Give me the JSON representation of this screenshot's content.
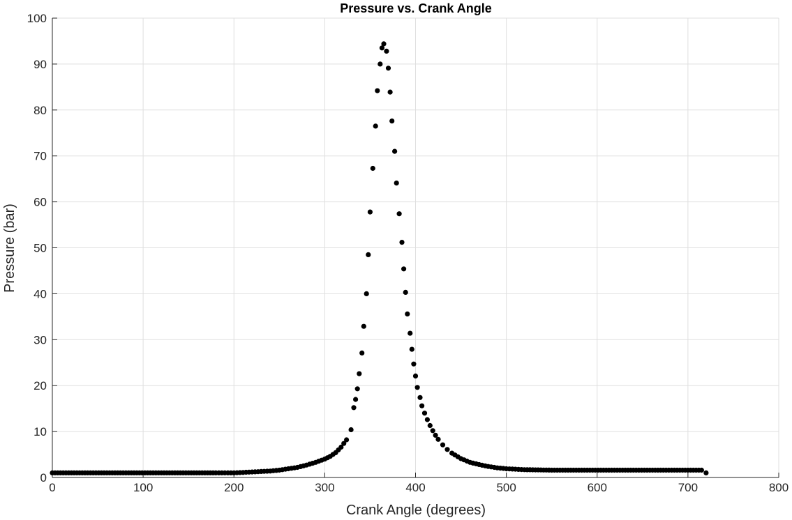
{
  "chart_data": {
    "type": "scatter",
    "title": "Pressure vs. Crank Angle",
    "xlabel": "Crank Angle (degrees)",
    "ylabel": "Pressure (bar)",
    "xlim": [
      0,
      800
    ],
    "ylim": [
      0,
      100
    ],
    "xticks": [
      0,
      100,
      200,
      300,
      400,
      500,
      600,
      700,
      800
    ],
    "yticks": [
      0,
      10,
      20,
      30,
      40,
      50,
      60,
      70,
      80,
      90,
      100
    ],
    "xtick_labels": [
      "0",
      "100",
      "200",
      "300",
      "400",
      "500",
      "600",
      "700",
      "800"
    ],
    "ytick_labels": [
      "0",
      "10",
      "20",
      "30",
      "40",
      "50",
      "60",
      "70",
      "80",
      "90",
      "100"
    ],
    "grid": true,
    "marker_color": "#000000",
    "series": [
      {
        "marker": "filled-circle",
        "points": [
          [
            0,
            1.0
          ],
          [
            30,
            1.0
          ],
          [
            60,
            1.0
          ],
          [
            90,
            1.0
          ],
          [
            120,
            1.0
          ],
          [
            150,
            1.0
          ],
          [
            180,
            1.0
          ],
          [
            200,
            1.0
          ],
          [
            210,
            1.1
          ],
          [
            220,
            1.2
          ],
          [
            230,
            1.3
          ],
          [
            240,
            1.4
          ],
          [
            250,
            1.6
          ],
          [
            260,
            1.9
          ],
          [
            270,
            2.2
          ],
          [
            280,
            2.7
          ],
          [
            290,
            3.3
          ],
          [
            300,
            4.0
          ],
          [
            306,
            4.6
          ],
          [
            312,
            5.4
          ],
          [
            318,
            6.6
          ],
          [
            324,
            8.2
          ],
          [
            329,
            10.4
          ],
          [
            332,
            15.2
          ],
          [
            334,
            17.0
          ],
          [
            336,
            19.3
          ],
          [
            338,
            22.6
          ],
          [
            341,
            27.1
          ],
          [
            343,
            32.9
          ],
          [
            346,
            40.0
          ],
          [
            348,
            48.5
          ],
          [
            350,
            57.8
          ],
          [
            353,
            67.3
          ],
          [
            356,
            76.5
          ],
          [
            358,
            84.2
          ],
          [
            361,
            90.0
          ],
          [
            363,
            93.5
          ],
          [
            365,
            94.4
          ],
          [
            368,
            92.8
          ],
          [
            370,
            89.1
          ],
          [
            372,
            83.9
          ],
          [
            374,
            77.6
          ],
          [
            377,
            71.0
          ],
          [
            379,
            64.1
          ],
          [
            382,
            57.4
          ],
          [
            385,
            51.2
          ],
          [
            387,
            45.4
          ],
          [
            389,
            40.3
          ],
          [
            391,
            35.6
          ],
          [
            394,
            31.4
          ],
          [
            396,
            27.9
          ],
          [
            398,
            24.7
          ],
          [
            400,
            22.1
          ],
          [
            402,
            19.6
          ],
          [
            405,
            17.4
          ],
          [
            407,
            15.6
          ],
          [
            410,
            14.0
          ],
          [
            413,
            12.6
          ],
          [
            416,
            11.3
          ],
          [
            419,
            10.2
          ],
          [
            422,
            9.2
          ],
          [
            425,
            8.3
          ],
          [
            430,
            7.1
          ],
          [
            435,
            6.1
          ],
          [
            440,
            5.3
          ],
          [
            450,
            4.1
          ],
          [
            460,
            3.3
          ],
          [
            470,
            2.8
          ],
          [
            480,
            2.4
          ],
          [
            490,
            2.1
          ],
          [
            500,
            1.9
          ],
          [
            520,
            1.7
          ],
          [
            550,
            1.6
          ],
          [
            580,
            1.6
          ],
          [
            610,
            1.6
          ],
          [
            640,
            1.6
          ],
          [
            670,
            1.6
          ],
          [
            700,
            1.6
          ],
          [
            715,
            1.6
          ],
          [
            720,
            1.0
          ]
        ]
      }
    ]
  }
}
